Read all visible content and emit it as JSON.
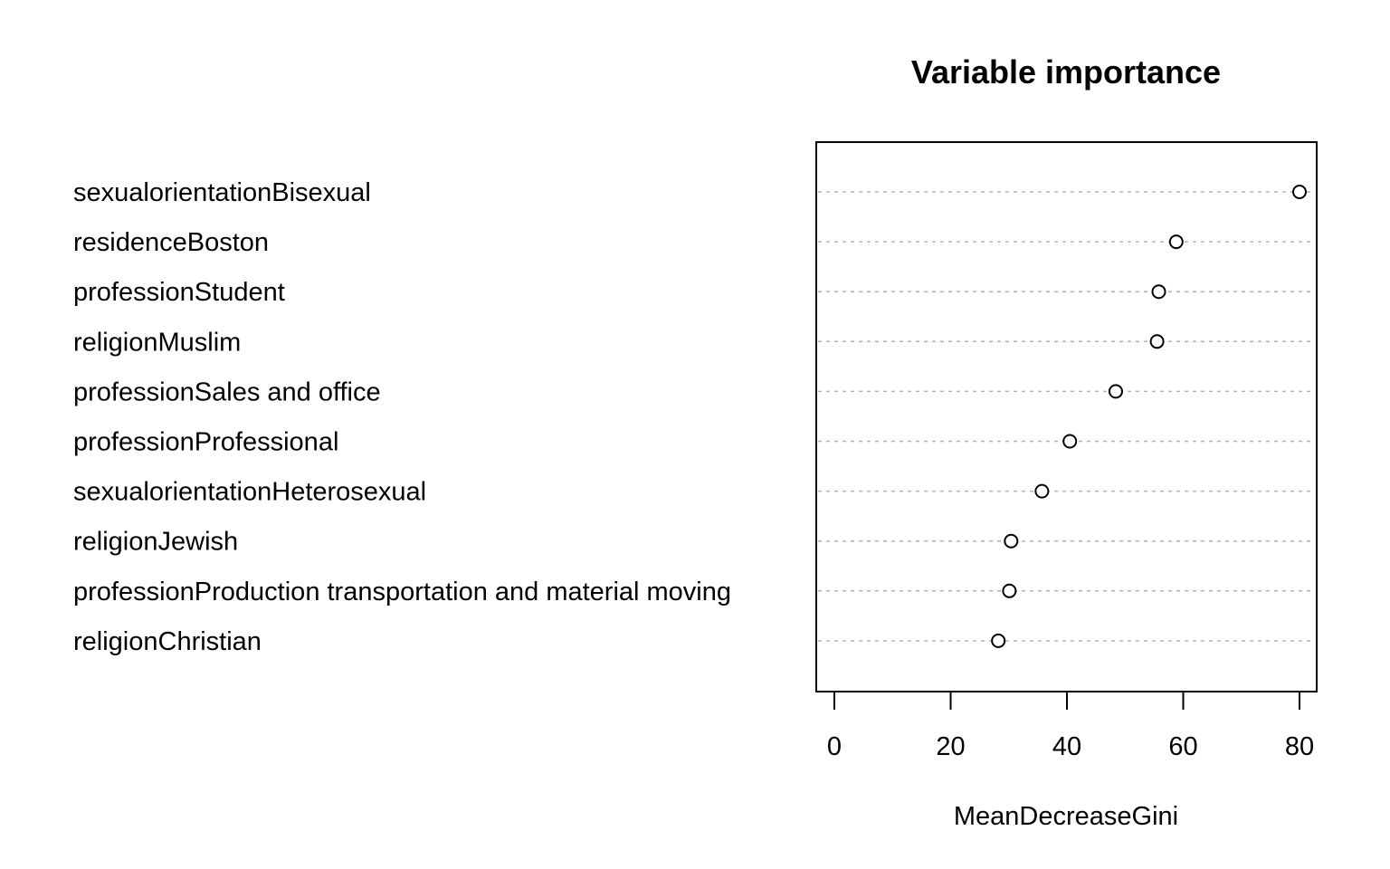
{
  "chart_data": {
    "type": "scatter",
    "title": "Variable importance",
    "xlabel": "MeanDecreaseGini",
    "ylabel": "",
    "xlim": [
      -3,
      83
    ],
    "xticks": [
      0,
      20,
      40,
      60,
      80
    ],
    "grid": false,
    "legend": "none",
    "categories": [
      "sexualorientationBisexual",
      "residenceBoston",
      "professionStudent",
      "religionMuslim",
      "professionSales and office",
      "professionProfessional",
      "sexualorientationHeterosexual",
      "religionJewish",
      "professionProduction transportation and material moving",
      "religionChristian"
    ],
    "values": [
      80.0,
      58.8,
      55.8,
      55.5,
      48.4,
      40.5,
      35.7,
      30.4,
      30.1,
      28.2
    ],
    "colors": {
      "point_stroke": "#000000",
      "point_fill": "#ffffff",
      "guide": "#b3b3b3"
    }
  }
}
